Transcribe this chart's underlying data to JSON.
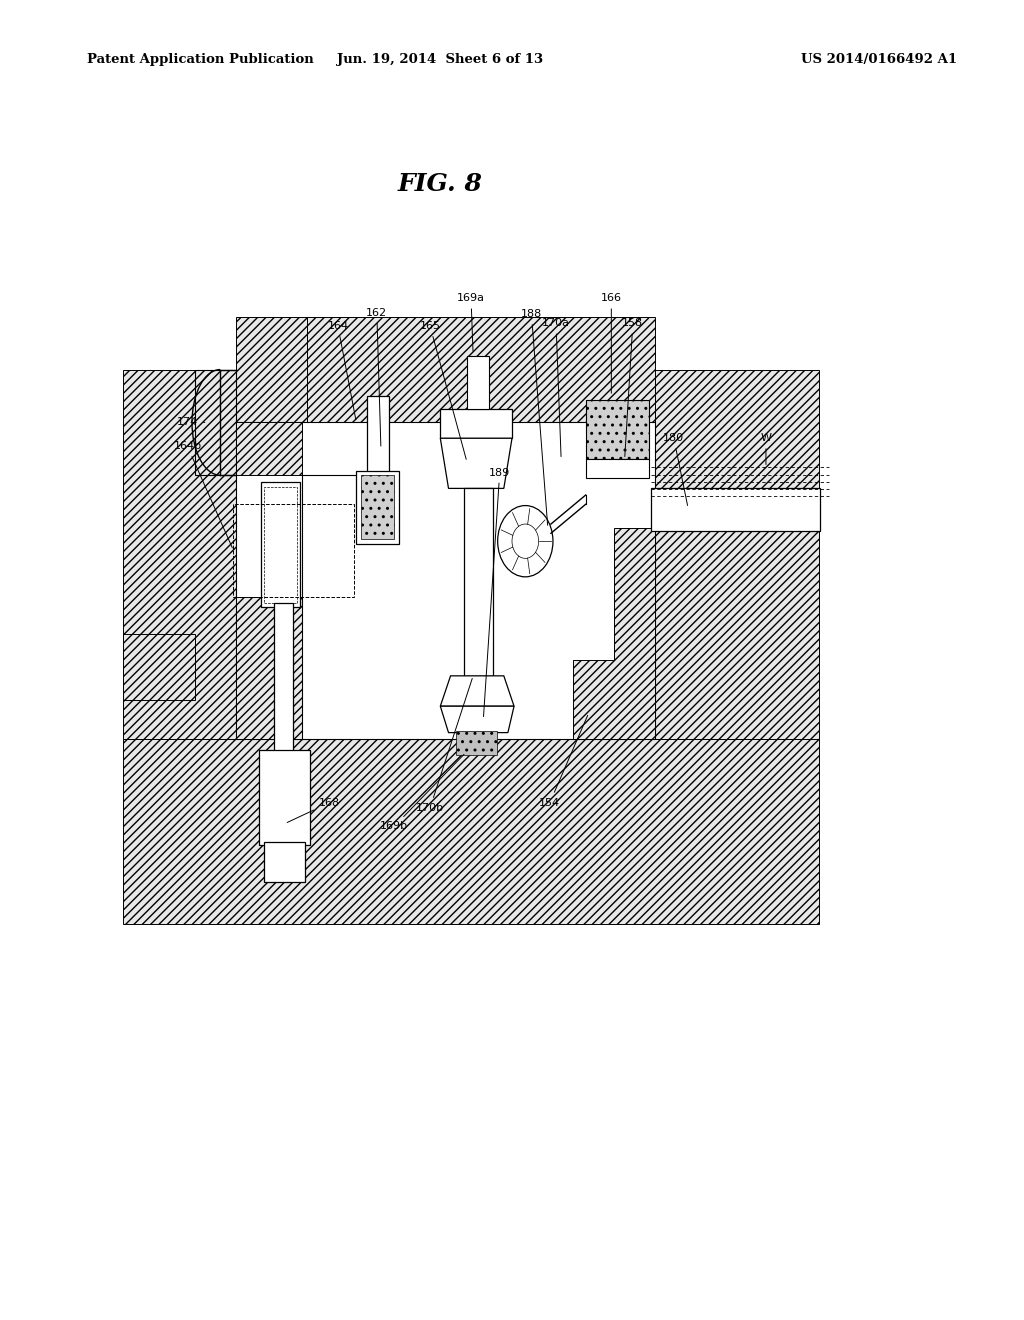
{
  "title": "FIG. 8",
  "header_left": "Patent Application Publication",
  "header_center": "Jun. 19, 2014  Sheet 6 of 13",
  "header_right": "US 2014/0166492 A1",
  "bg_color": "#ffffff",
  "line_color": "#000000"
}
